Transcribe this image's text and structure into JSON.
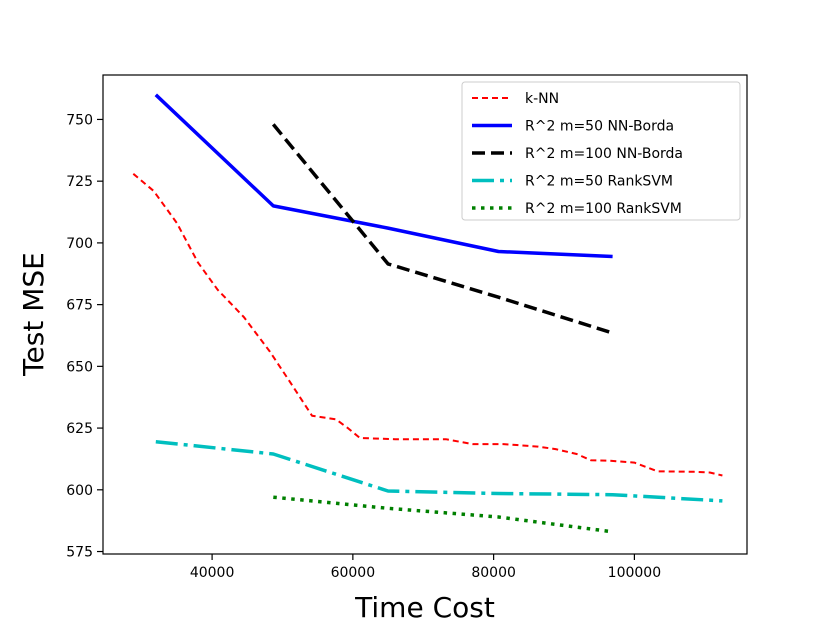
{
  "chart_data": {
    "type": "line",
    "title": "",
    "xlabel": "Time Cost",
    "ylabel": "Test MSE",
    "xlim": [
      24500,
      116000
    ],
    "ylim": [
      574,
      768
    ],
    "grid": false,
    "legend_position": "top-right",
    "xticks": [
      40000,
      60000,
      80000,
      100000
    ],
    "xtick_labels": [
      "40000",
      "60000",
      "80000",
      "100000"
    ],
    "yticks": [
      575,
      600,
      625,
      650,
      675,
      700,
      725,
      750
    ],
    "ytick_labels": [
      "575",
      "600",
      "625",
      "650",
      "675",
      "700",
      "725",
      "750"
    ],
    "series": [
      {
        "name": "k-NN",
        "color": "#ff0000",
        "style": "dashed-thin",
        "x": [
          28800,
          31700,
          35000,
          38000,
          40800,
          44500,
          48200,
          51000,
          54200,
          57600,
          59300,
          61000,
          66000,
          73200,
          77000,
          81400,
          86300,
          88800,
          91800,
          93800,
          96500,
          100000,
          103300,
          108500,
          110700,
          112500
        ],
        "y": [
          728,
          721,
          708,
          692,
          681,
          670,
          656,
          644,
          630,
          628.5,
          625,
          621,
          620.5,
          620.5,
          618.5,
          618.5,
          617.5,
          616.5,
          614.5,
          612,
          611.8,
          611,
          607.5,
          607.3,
          607,
          605.8
        ]
      },
      {
        "name": "R^2 m=50 NN-Borda",
        "color": "#0000ff",
        "style": "solid",
        "x": [
          32000,
          48700,
          65000,
          80700,
          96900
        ],
        "y": [
          760,
          715,
          706,
          696.5,
          694.5
        ]
      },
      {
        "name": "R^2 m=100 NN-Borda",
        "color": "#000000",
        "style": "dashed",
        "x": [
          48700,
          65000,
          80700,
          96900
        ],
        "y": [
          748,
          691.5,
          678,
          663.5
        ]
      },
      {
        "name": "R^2 m=50 RankSVM",
        "color": "#00bfbf",
        "style": "dashdot",
        "x": [
          32000,
          48700,
          65000,
          80700,
          96900,
          112500
        ],
        "y": [
          619.5,
          614.5,
          599.5,
          598.5,
          598,
          595.5
        ]
      },
      {
        "name": "R^2 m=100 RankSVM",
        "color": "#008000",
        "style": "dotted",
        "x": [
          48700,
          65000,
          80700,
          96900
        ],
        "y": [
          597,
          592.5,
          589,
          583
        ]
      }
    ]
  }
}
